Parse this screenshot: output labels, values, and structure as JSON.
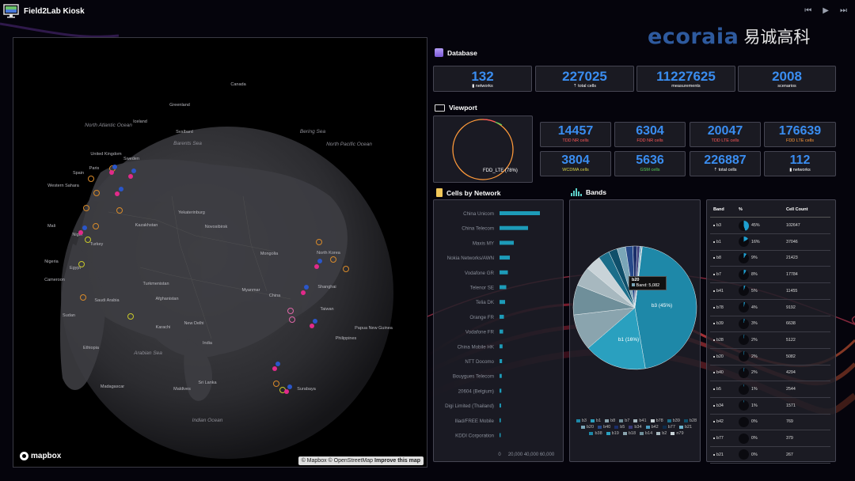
{
  "app": {
    "title": "Field2Lab Kiosk"
  },
  "logo": {
    "latin": "ecoraia",
    "chinese": "易诚高科"
  },
  "database": {
    "header": "Database",
    "stats": [
      {
        "value": "132",
        "label": "networks",
        "icon": "notepad-icon"
      },
      {
        "value": "227025",
        "label": "total cells",
        "icon": "antenna-icon"
      },
      {
        "value": "11227625",
        "label": "measurements"
      },
      {
        "value": "2008",
        "label": "scenarios"
      }
    ]
  },
  "viewport": {
    "header": "Viewport",
    "donut_label": "FDD_LTE (78%)",
    "stats": [
      {
        "value": "14457",
        "label": "TDD NR cells",
        "color": "red"
      },
      {
        "value": "6304",
        "label": "FDD NR cells",
        "color": "red"
      },
      {
        "value": "20047",
        "label": "TDD LTE cells",
        "color": "red"
      },
      {
        "value": "176639",
        "label": "FDD LTE cells",
        "color": "orange"
      },
      {
        "value": "3804",
        "label": "WCDMA cells",
        "color": "yellow"
      },
      {
        "value": "5636",
        "label": "GSM cells",
        "color": "green"
      },
      {
        "value": "226887",
        "label": "total cells",
        "icon": "antenna-icon"
      },
      {
        "value": "112",
        "label": "networks",
        "icon": "notepad-icon"
      }
    ]
  },
  "cells_by_network": {
    "header": "Cells by Network",
    "networks": [
      "China Unicom",
      "China Telecom",
      "Maxis MY",
      "Nokia Networks/AWN",
      "Vodafone GR",
      "Telenor SE",
      "Telia DK",
      "Orange FR",
      "Vodafone FR",
      "China Mobile HK",
      "NTT Docomo",
      "Bouygues Telecom",
      "20604 (Belgium)",
      "Digi Limited (Thailand)",
      "Iliad/FREE Mobile",
      "KDDI Corporation"
    ],
    "x_ticks": [
      "0",
      "20,000",
      "40,000",
      "60,000"
    ]
  },
  "bands": {
    "header": "Bands",
    "pie_labels": {
      "b3": "b3 (45%)",
      "b1": "b1 (16%)"
    },
    "tooltip": {
      "title": "b20",
      "text": "Band: 5,082"
    },
    "legend": [
      "b3",
      "b1",
      "b8",
      "b7",
      "b41",
      "b78",
      "b39",
      "b28",
      "b20",
      "b40",
      "b5",
      "b34",
      "b42",
      "b77",
      "b21",
      "b38",
      "b19",
      "b18",
      "b14",
      "b2",
      "n79"
    ]
  },
  "chart_data": {
    "type": "pie",
    "title": "Bands",
    "categories": [
      "b3",
      "b1",
      "b8",
      "b7",
      "b41",
      "b78",
      "b39",
      "b28",
      "b20",
      "b40",
      "b5",
      "b34",
      "b42",
      "b77",
      "b21"
    ],
    "values": [
      102647,
      37046,
      21423,
      17784,
      11455,
      9192,
      6638,
      5122,
      5082,
      4294,
      2544,
      1571,
      769,
      379,
      267
    ],
    "percent": [
      45,
      16,
      9,
      8,
      5,
      4,
      3,
      2,
      2,
      2,
      1,
      1,
      0,
      0,
      0
    ]
  },
  "band_table": {
    "headers": {
      "band": "Band",
      "pct": "%",
      "count": "Cell Count"
    },
    "rows": [
      {
        "band": "b3",
        "pct": "45%",
        "count": "102647"
      },
      {
        "band": "b1",
        "pct": "16%",
        "count": "37046"
      },
      {
        "band": "b8",
        "pct": "9%",
        "count": "21423"
      },
      {
        "band": "b7",
        "pct": "8%",
        "count": "17784"
      },
      {
        "band": "b41",
        "pct": "5%",
        "count": "11455"
      },
      {
        "band": "b78",
        "pct": "4%",
        "count": "9192"
      },
      {
        "band": "b39",
        "pct": "3%",
        "count": "6638"
      },
      {
        "band": "b28",
        "pct": "2%",
        "count": "5122"
      },
      {
        "band": "b20",
        "pct": "2%",
        "count": "5082"
      },
      {
        "band": "b40",
        "pct": "2%",
        "count": "4294"
      },
      {
        "band": "b5",
        "pct": "1%",
        "count": "2544"
      },
      {
        "band": "b34",
        "pct": "1%",
        "count": "1571"
      },
      {
        "band": "b42",
        "pct": "0%",
        "count": "769"
      },
      {
        "band": "b77",
        "pct": "0%",
        "count": "379"
      },
      {
        "band": "b21",
        "pct": "0%",
        "count": "267"
      }
    ]
  },
  "map": {
    "labels": [
      "Canada",
      "Greenland",
      "Iceland",
      "North Atlantic Ocean",
      "Svalbard",
      "Barents Sea",
      "Bering Sea",
      "North Pacific Ocean",
      "United Kingdom",
      "Sweden",
      "Paris",
      "Spain",
      "Western Sahara",
      "Mali",
      "Niger",
      "Nigeria",
      "Cameroon",
      "Egypt",
      "Turkey",
      "Yekaterinburg",
      "Novosibirsk",
      "Kazakhstan",
      "Mongolia",
      "Turkmenistan",
      "Afghanistan",
      "Saudi Arabia",
      "Sudan",
      "Ethiopia",
      "Karachi",
      "New Delhi",
      "India",
      "Arabian Sea",
      "China",
      "North Korea",
      "Shanghai",
      "Taiwan",
      "Philippines",
      "Papua New Guinea",
      "Myanmar",
      "Madagascar",
      "Maldives",
      "Sri Lanka",
      "Indian Ocean",
      "Surabaya"
    ],
    "attribution": {
      "mapbox": "© Mapbox",
      "osm": "© OpenStreetMap",
      "improve": "Improve this map"
    },
    "brand": "mapbox"
  }
}
